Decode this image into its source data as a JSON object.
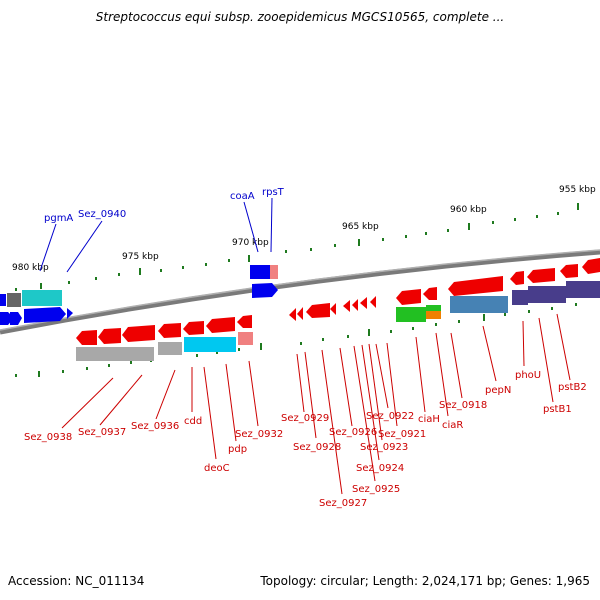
{
  "title": "Streptococcus equi subsp. zooepidemicus MGCS10565, complete ...",
  "footer": {
    "accession": "Accession: NC_011134",
    "summary": "Topology: circular; Length: 2,024,171 bp; Genes: 1,965"
  },
  "colors": {
    "backbone": "#808080",
    "tick": "#1f7a1f",
    "top_label": "#0000cc",
    "bottom_label": "#cc0000"
  },
  "scale_labels": [
    "980 kbp",
    "975 kbp",
    "970 kbp",
    "965 kbp",
    "960 kbp",
    "955 kbp"
  ],
  "top_gene_labels": [
    "pgmA",
    "Sez_0940",
    "coaA",
    "rpsT"
  ],
  "bottom_gene_labels": [
    "Sez_0938",
    "Sez_0937",
    "Sez_0936",
    "cdd",
    "deoC",
    "pdp",
    "Sez_0932",
    "Sez_0929",
    "Sez_0928",
    "Sez_0927",
    "Sez_0926",
    "Sez_0925",
    "Sez_0924",
    "Sez_0923",
    "Sez_0922",
    "Sez_0921",
    "ciaH",
    "ciaR",
    "Sez_0918",
    "pepN",
    "phoU",
    "pstB1",
    "pstB2"
  ]
}
